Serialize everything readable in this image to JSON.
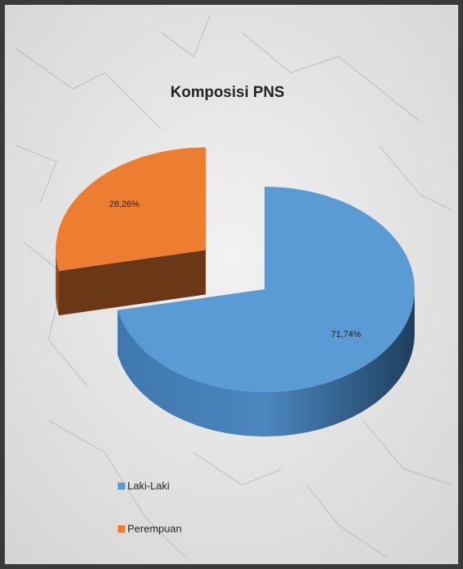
{
  "chart_data": {
    "type": "pie3d",
    "title": "Komposisi PNS",
    "categories": [
      "Laki-Laki",
      "Perempuan"
    ],
    "values": [
      71.74,
      28.26
    ],
    "value_labels": [
      "71,74%",
      "28,26%"
    ],
    "colors": [
      "#5b9bd5",
      "#ed7d31"
    ],
    "legend": "bottom-left"
  }
}
